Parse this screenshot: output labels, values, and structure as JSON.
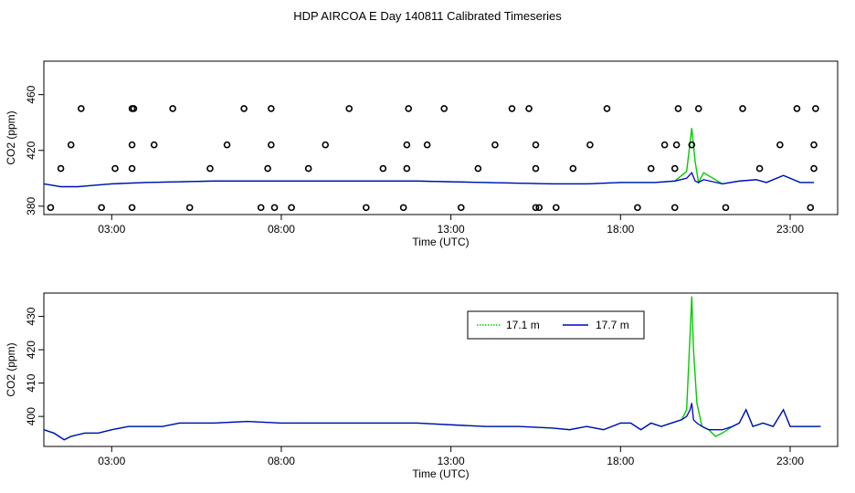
{
  "title": "HDP AIRCOA E  Day 140811  Calibrated Timeseries",
  "colors": {
    "green": "#00cc00",
    "blue": "#0000cc",
    "axis": "#000000"
  },
  "chart_data": [
    {
      "type": "line",
      "ylabel": "CO2 (ppm)",
      "xlabel": "Time (UTC)",
      "xlim": [
        1.0,
        24.4
      ],
      "ylim": [
        374,
        484
      ],
      "x_ticks": [
        3,
        8,
        13,
        18,
        23
      ],
      "x_tick_labels": [
        "03:00",
        "08:00",
        "13:00",
        "18:00",
        "23:00"
      ],
      "y_ticks": [
        380,
        420,
        460
      ],
      "y_tick_labels": [
        "380",
        "420",
        "460"
      ],
      "series": [
        {
          "name": "17.1 m",
          "color": "#00cc00",
          "x": [
            1.0,
            1.5,
            2.0,
            2.5,
            3.0,
            4.0,
            6.0,
            8.0,
            10.0,
            12.0,
            14.0,
            16.0,
            17.0,
            18.0,
            19.0,
            19.6,
            19.95,
            20.1,
            20.2,
            20.3,
            20.45,
            21.0,
            21.5,
            22.0,
            22.3,
            22.8,
            23.3,
            23.7
          ],
          "y": [
            396,
            394,
            394,
            395,
            396,
            397,
            398,
            398,
            398,
            398,
            397,
            396,
            396,
            397,
            397,
            398,
            405,
            436,
            412,
            397,
            404,
            396,
            398,
            399,
            397,
            402,
            397,
            397
          ]
        },
        {
          "name": "17.7 m",
          "color": "#0000cc",
          "x": [
            1.0,
            1.5,
            2.0,
            2.5,
            3.0,
            4.0,
            6.0,
            8.0,
            10.0,
            12.0,
            14.0,
            16.0,
            17.0,
            18.0,
            19.0,
            19.6,
            19.95,
            20.1,
            20.2,
            20.3,
            20.45,
            21.0,
            21.5,
            22.0,
            22.3,
            22.8,
            23.3,
            23.7
          ],
          "y": [
            396,
            394,
            394,
            395,
            396,
            397,
            398,
            398,
            398,
            398,
            397,
            396,
            396,
            397,
            397,
            398,
            400,
            404,
            398,
            397,
            399,
            396,
            398,
            399,
            397,
            402,
            397,
            397
          ]
        }
      ],
      "points": {
        "name": "cal",
        "x": [
          1.2,
          1.5,
          1.8,
          2.1,
          2.7,
          3.1,
          3.6,
          3.6,
          3.6,
          3.6,
          3.65,
          4.25,
          4.8,
          5.3,
          5.9,
          6.4,
          6.9,
          7.4,
          7.6,
          7.7,
          7.7,
          7.8,
          8.3,
          8.8,
          9.3,
          10.0,
          10.5,
          11.0,
          11.6,
          11.7,
          11.7,
          11.75,
          12.3,
          12.8,
          13.3,
          13.8,
          14.3,
          14.8,
          15.3,
          15.5,
          15.5,
          15.5,
          15.6,
          16.1,
          16.6,
          17.1,
          17.6,
          18.5,
          18.9,
          19.3,
          19.6,
          19.6,
          19.65,
          19.7,
          20.1,
          20.3,
          21.1,
          21.6,
          22.1,
          22.7,
          23.2,
          23.6,
          23.7,
          23.7,
          23.75
        ],
        "y": [
          379,
          407,
          424,
          450,
          379,
          407,
          379,
          407,
          424,
          450,
          450,
          424,
          450,
          379,
          407,
          424,
          450,
          379,
          407,
          424,
          450,
          379,
          379,
          407,
          424,
          450,
          379,
          407,
          379,
          407,
          424,
          450,
          424,
          450,
          379,
          407,
          424,
          450,
          450,
          379,
          407,
          424,
          379,
          379,
          407,
          424,
          450,
          379,
          407,
          424,
          379,
          407,
          424,
          450,
          424,
          450,
          379,
          450,
          407,
          424,
          450,
          379,
          407,
          424,
          450
        ]
      }
    },
    {
      "type": "line",
      "ylabel": "CO2 (ppm)",
      "xlabel": "Time (UTC)",
      "xlim": [
        1.0,
        24.4
      ],
      "ylim": [
        391,
        437
      ],
      "x_ticks": [
        3,
        8,
        13,
        18,
        23
      ],
      "x_tick_labels": [
        "03:00",
        "08:00",
        "13:00",
        "18:00",
        "23:00"
      ],
      "y_ticks": [
        400,
        410,
        420,
        430
      ],
      "y_tick_labels": [
        "400",
        "410",
        "420",
        "430"
      ],
      "legend": {
        "placement": "top-right",
        "entries": [
          {
            "label": "17.1 m",
            "color": "#00cc00",
            "style": "dotted"
          },
          {
            "label": "17.7 m",
            "color": "#0000cc",
            "style": "solid"
          }
        ]
      },
      "series": [
        {
          "name": "17.1 m",
          "color": "#00cc00",
          "x": [
            1.0,
            1.3,
            1.6,
            1.8,
            2.2,
            2.6,
            3.0,
            3.5,
            4.0,
            4.5,
            5.0,
            6.0,
            7.0,
            8.0,
            9.0,
            10.0,
            11.0,
            12.0,
            13.0,
            14.0,
            15.0,
            16.0,
            16.5,
            17.0,
            17.5,
            18.0,
            18.3,
            18.6,
            18.9,
            19.2,
            19.5,
            19.8,
            19.95,
            20.05,
            20.1,
            20.15,
            20.25,
            20.4,
            20.6,
            20.8,
            21.0,
            21.3,
            21.5,
            21.7,
            21.9,
            22.2,
            22.5,
            22.8,
            23.0,
            23.3,
            23.6,
            23.9
          ],
          "y": [
            396,
            395,
            393,
            394,
            395,
            395,
            396,
            397,
            397,
            397,
            398,
            398,
            398.5,
            398,
            398,
            398,
            398,
            398,
            397.5,
            397,
            397,
            396.5,
            396,
            397,
            396,
            398,
            398,
            396,
            398,
            397,
            398,
            399,
            402,
            425,
            436,
            420,
            404,
            397,
            396,
            394,
            395,
            397,
            398,
            402,
            397,
            398,
            397,
            402,
            397,
            397,
            397,
            397
          ]
        },
        {
          "name": "17.7 m",
          "color": "#0000cc",
          "x": [
            1.0,
            1.3,
            1.6,
            1.8,
            2.2,
            2.6,
            3.0,
            3.5,
            4.0,
            4.5,
            5.0,
            6.0,
            7.0,
            8.0,
            9.0,
            10.0,
            11.0,
            12.0,
            13.0,
            14.0,
            15.0,
            16.0,
            16.5,
            17.0,
            17.5,
            18.0,
            18.3,
            18.6,
            18.9,
            19.2,
            19.5,
            19.8,
            19.95,
            20.05,
            20.1,
            20.15,
            20.25,
            20.4,
            20.6,
            20.8,
            21.0,
            21.3,
            21.5,
            21.7,
            21.9,
            22.2,
            22.5,
            22.8,
            23.0,
            23.3,
            23.6,
            23.9
          ],
          "y": [
            396,
            395,
            393,
            394,
            395,
            395,
            396,
            397,
            397,
            397,
            398,
            398,
            398.5,
            398,
            398,
            398,
            398,
            398,
            397.5,
            397,
            397,
            396.5,
            396,
            397,
            396,
            398,
            398,
            396,
            398,
            397,
            398,
            399,
            400,
            402,
            404,
            399,
            398,
            397,
            396,
            396,
            396,
            397,
            398,
            402,
            397,
            398,
            397,
            402,
            397,
            397,
            397,
            397
          ]
        }
      ]
    }
  ]
}
